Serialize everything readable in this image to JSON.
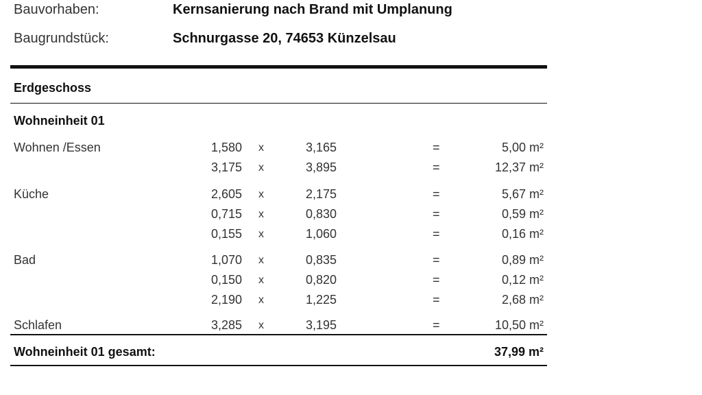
{
  "header": {
    "project_label": "Bauvorhaben:",
    "project_value": "Kernsanierung nach Brand mit Umplanung",
    "site_label": "Baugrundstück:",
    "site_value": "Schnurgasse 20, 74653 Künzelsau"
  },
  "section": "Erdgeschoss",
  "unit": "Wohneinheit 01",
  "rows": [
    {
      "room": "Wohnen /Essen",
      "a": "1,580",
      "op": "x",
      "b": "3,165",
      "eq": "=",
      "area": "5,00 m²"
    },
    {
      "room": "",
      "a": "3,175",
      "op": "x",
      "b": "3,895",
      "eq": "=",
      "area": "12,37 m²"
    },
    {
      "room": "Küche",
      "a": "2,605",
      "op": "x",
      "b": "2,175",
      "eq": "=",
      "area": "5,67 m²"
    },
    {
      "room": "",
      "a": "0,715",
      "op": "x",
      "b": "0,830",
      "eq": "=",
      "area": "0,59 m²"
    },
    {
      "room": "",
      "a": "0,155",
      "op": "x",
      "b": "1,060",
      "eq": "=",
      "area": "0,16 m²"
    },
    {
      "room": "Bad",
      "a": "1,070",
      "op": "x",
      "b": "0,835",
      "eq": "=",
      "area": "0,89 m²"
    },
    {
      "room": "",
      "a": "0,150",
      "op": "x",
      "b": "0,820",
      "eq": "=",
      "area": "0,12 m²"
    },
    {
      "room": "",
      "a": "2,190",
      "op": "x",
      "b": "1,225",
      "eq": "=",
      "area": "2,68 m²"
    },
    {
      "room": "Schlafen",
      "a": "3,285",
      "op": "x",
      "b": "3,195",
      "eq": "=",
      "area": "10,50 m²"
    }
  ],
  "total": {
    "label": "Wohneinheit 01 gesamt:",
    "value": "37,99 m²"
  }
}
